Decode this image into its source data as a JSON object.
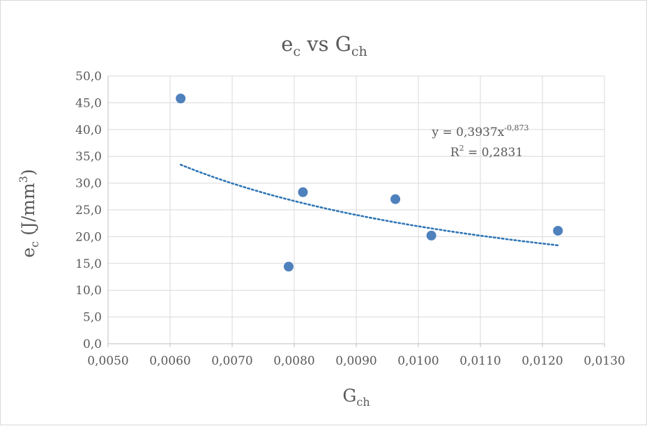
{
  "chart_data": {
    "type": "scatter",
    "title": {
      "base": "e",
      "sub": "c",
      "mid": " vs ",
      "base2": "G",
      "sub2": "ch"
    },
    "xlabel": {
      "base": "G",
      "sub": "ch"
    },
    "ylabel": {
      "base": "e",
      "sub": "c",
      "rest": " (J/mm",
      "sup": "3",
      "close": ")"
    },
    "xlim": [
      0.005,
      0.013
    ],
    "ylim": [
      0,
      50
    ],
    "x_ticks": [
      0.005,
      0.006,
      0.007,
      0.008,
      0.009,
      0.01,
      0.011,
      0.012,
      0.013
    ],
    "x_tick_labels": [
      "0,0050",
      "0,0060",
      "0,0070",
      "0,0080",
      "0,0090",
      "0,0100",
      "0,0110",
      "0,0120",
      "0,0130"
    ],
    "y_ticks": [
      0,
      5,
      10,
      15,
      20,
      25,
      30,
      35,
      40,
      45,
      50
    ],
    "y_tick_labels": [
      "0,0",
      "5,0",
      "10,0",
      "15,0",
      "20,0",
      "25,0",
      "30,0",
      "35,0",
      "40,0",
      "45,0",
      "50,0"
    ],
    "grid": true,
    "legend": "none",
    "series": [
      {
        "points": [
          {
            "x": 0.00617,
            "y": 45.8
          },
          {
            "x": 0.00791,
            "y": 14.4
          },
          {
            "x": 0.00814,
            "y": 28.3
          },
          {
            "x": 0.00963,
            "y": 27.0
          },
          {
            "x": 0.01021,
            "y": 20.2
          },
          {
            "x": 0.01225,
            "y": 21.1
          }
        ],
        "color": "#4f81bd"
      }
    ],
    "trendline": {
      "type": "power",
      "a": 0.3937,
      "b": -0.873,
      "x_range": [
        0.00617,
        0.01225
      ],
      "color": "#2e75b6",
      "equation": {
        "prefix": "y = 0,3937x",
        "exp": "-0,873"
      },
      "r2": {
        "prefix": "R",
        "sup": "2",
        "suffix": " = 0,2831"
      }
    }
  }
}
